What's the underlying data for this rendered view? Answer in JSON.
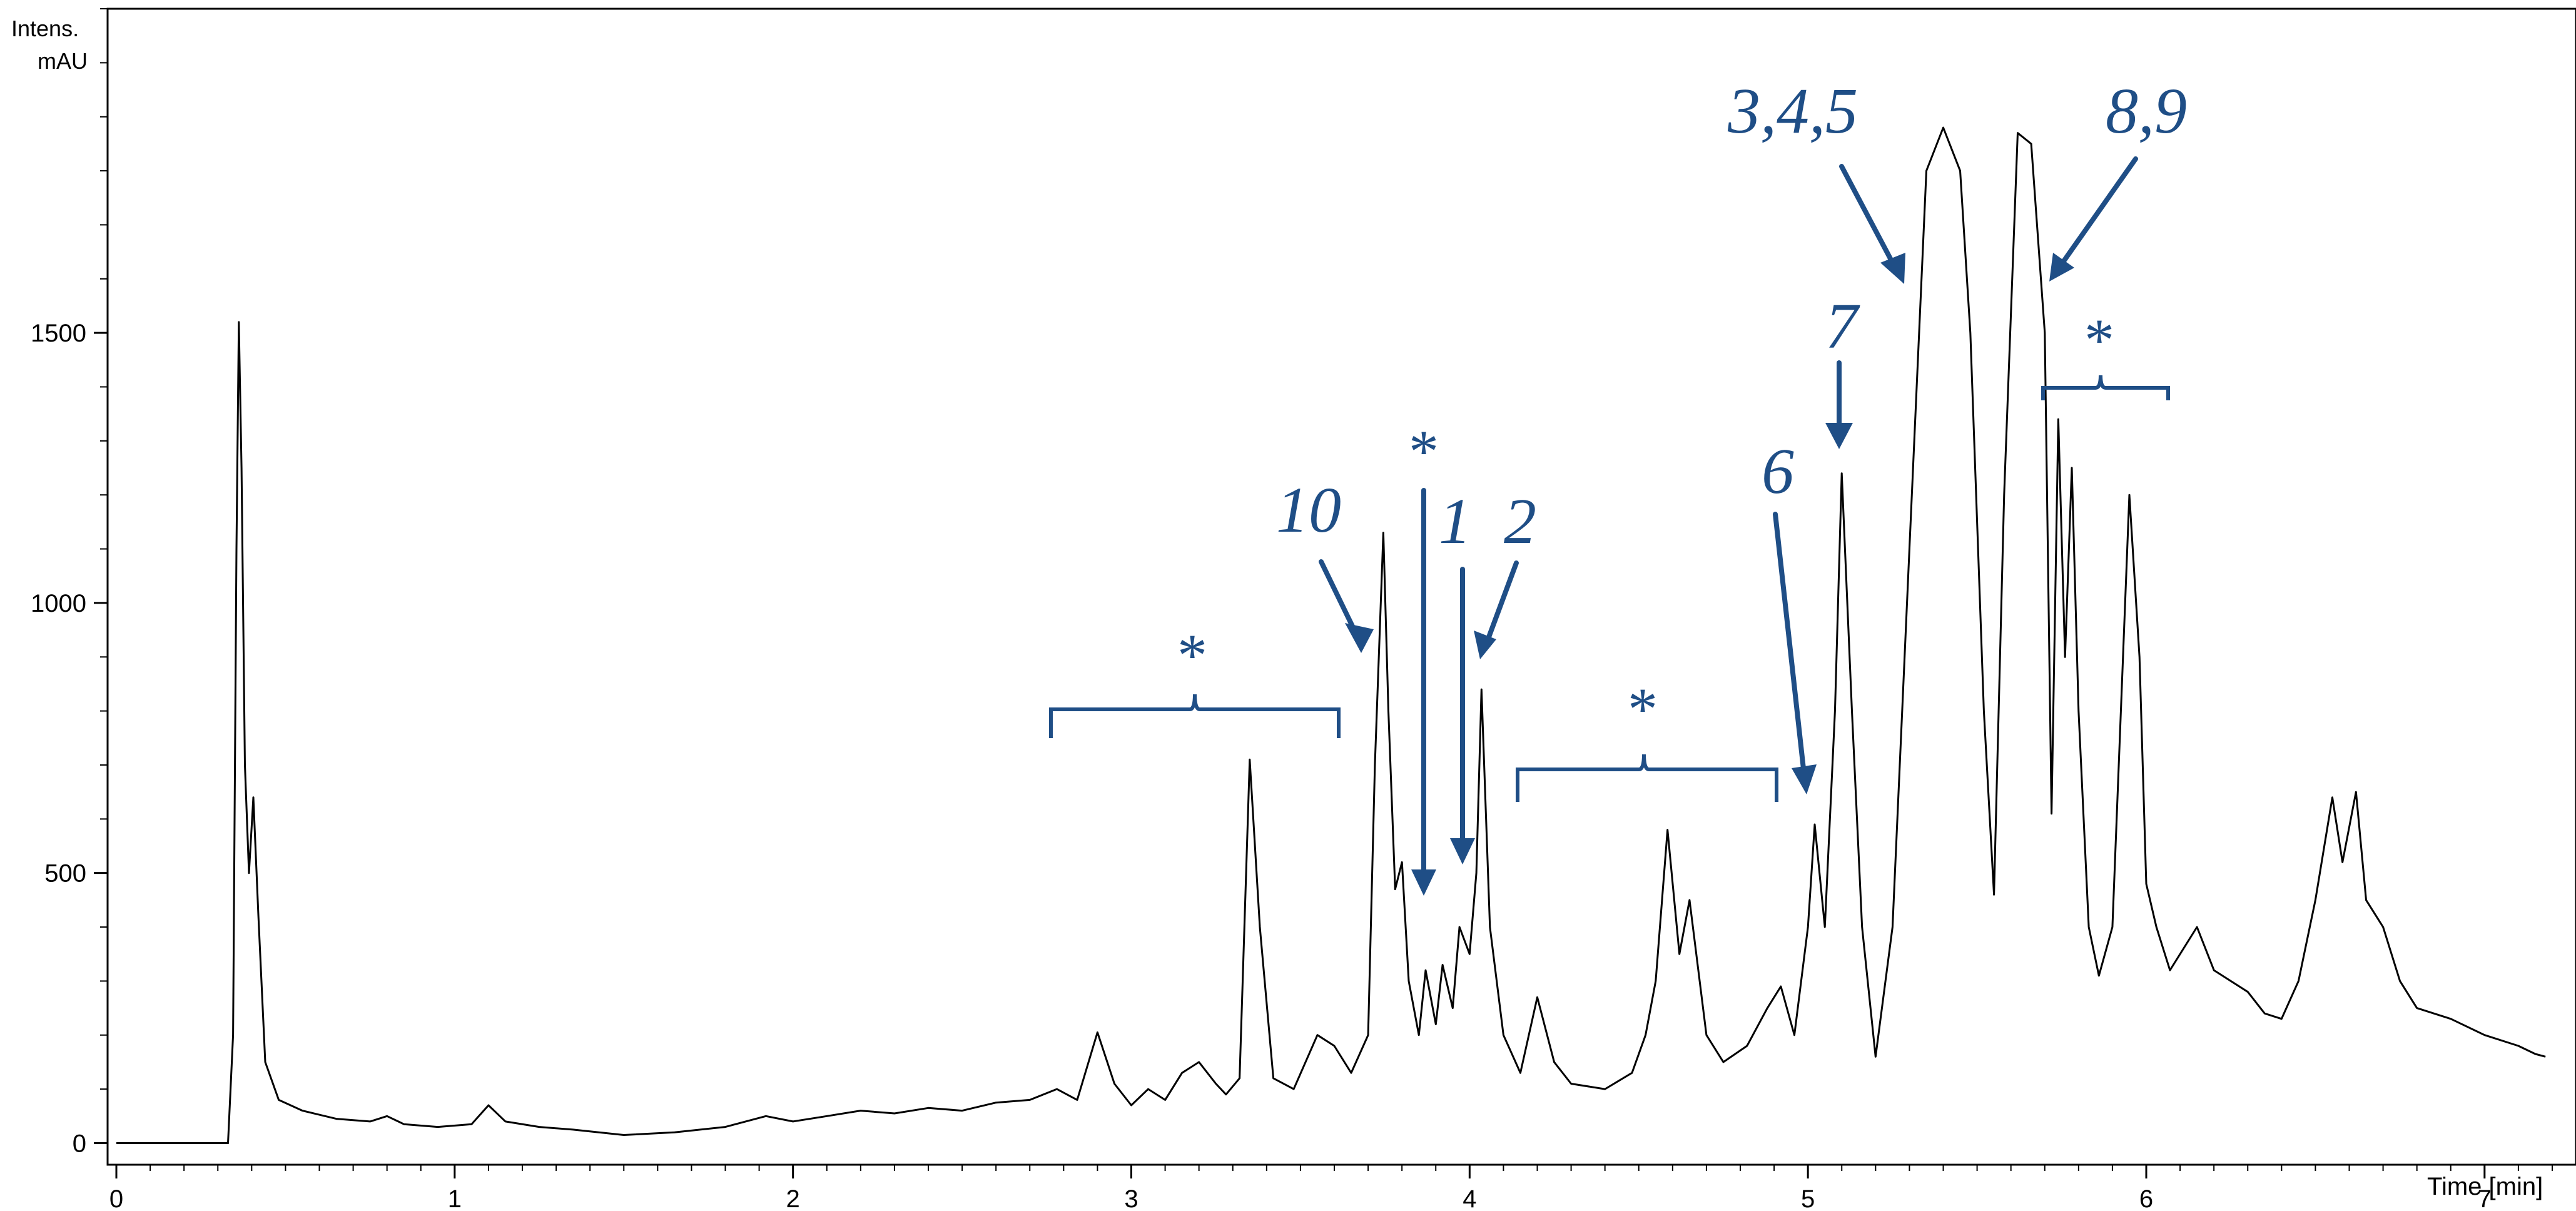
{
  "chart_data": {
    "type": "line",
    "title": "",
    "ylabel_line1": "Intens.",
    "ylabel_line2": "mAU",
    "xlabel": "Time [min]",
    "xlim": [
      0,
      7.2
    ],
    "ylim": [
      -40,
      2100
    ],
    "x_ticks": [
      "0",
      "1",
      "2",
      "3",
      "4",
      "5",
      "6",
      "7"
    ],
    "y_ticks": [
      "0",
      "500",
      "1000",
      "1500"
    ],
    "grid": false,
    "legend": "none",
    "line_color": "#000000",
    "annotation_color": "#1f4e86",
    "series": [
      {
        "points": [
          [
            0.0,
            0
          ],
          [
            0.25,
            0
          ],
          [
            0.33,
            0
          ],
          [
            0.345,
            200
          ],
          [
            0.355,
            1100
          ],
          [
            0.362,
            1520
          ],
          [
            0.37,
            1250
          ],
          [
            0.38,
            700
          ],
          [
            0.392,
            500
          ],
          [
            0.405,
            640
          ],
          [
            0.42,
            420
          ],
          [
            0.44,
            150
          ],
          [
            0.48,
            80
          ],
          [
            0.55,
            60
          ],
          [
            0.65,
            45
          ],
          [
            0.75,
            40
          ],
          [
            0.8,
            50
          ],
          [
            0.85,
            35
          ],
          [
            0.95,
            30
          ],
          [
            1.05,
            35
          ],
          [
            1.1,
            70
          ],
          [
            1.15,
            40
          ],
          [
            1.25,
            30
          ],
          [
            1.35,
            25
          ],
          [
            1.5,
            15
          ],
          [
            1.65,
            20
          ],
          [
            1.8,
            30
          ],
          [
            1.92,
            50
          ],
          [
            2.0,
            40
          ],
          [
            2.1,
            50
          ],
          [
            2.2,
            60
          ],
          [
            2.3,
            55
          ],
          [
            2.4,
            65
          ],
          [
            2.5,
            60
          ],
          [
            2.6,
            75
          ],
          [
            2.7,
            80
          ],
          [
            2.78,
            100
          ],
          [
            2.84,
            80
          ],
          [
            2.9,
            205
          ],
          [
            2.95,
            110
          ],
          [
            3.0,
            70
          ],
          [
            3.05,
            100
          ],
          [
            3.1,
            80
          ],
          [
            3.15,
            130
          ],
          [
            3.2,
            150
          ],
          [
            3.25,
            110
          ],
          [
            3.28,
            90
          ],
          [
            3.32,
            120
          ],
          [
            3.35,
            710
          ],
          [
            3.38,
            400
          ],
          [
            3.42,
            120
          ],
          [
            3.48,
            100
          ],
          [
            3.55,
            200
          ],
          [
            3.6,
            180
          ],
          [
            3.65,
            130
          ],
          [
            3.7,
            200
          ],
          [
            3.72,
            700
          ],
          [
            3.745,
            1130
          ],
          [
            3.76,
            800
          ],
          [
            3.78,
            470
          ],
          [
            3.8,
            520
          ],
          [
            3.82,
            300
          ],
          [
            3.85,
            200
          ],
          [
            3.87,
            320
          ],
          [
            3.9,
            220
          ],
          [
            3.92,
            330
          ],
          [
            3.95,
            250
          ],
          [
            3.97,
            400
          ],
          [
            4.0,
            350
          ],
          [
            4.02,
            500
          ],
          [
            4.035,
            840
          ],
          [
            4.06,
            400
          ],
          [
            4.1,
            200
          ],
          [
            4.15,
            130
          ],
          [
            4.2,
            270
          ],
          [
            4.25,
            150
          ],
          [
            4.3,
            110
          ],
          [
            4.4,
            100
          ],
          [
            4.48,
            130
          ],
          [
            4.52,
            200
          ],
          [
            4.55,
            300
          ],
          [
            4.585,
            580
          ],
          [
            4.62,
            350
          ],
          [
            4.65,
            450
          ],
          [
            4.7,
            200
          ],
          [
            4.75,
            150
          ],
          [
            4.82,
            180
          ],
          [
            4.88,
            250
          ],
          [
            4.92,
            290
          ],
          [
            4.96,
            200
          ],
          [
            5.0,
            400
          ],
          [
            5.02,
            590
          ],
          [
            5.05,
            400
          ],
          [
            5.08,
            800
          ],
          [
            5.1,
            1240
          ],
          [
            5.13,
            800
          ],
          [
            5.16,
            400
          ],
          [
            5.2,
            160
          ],
          [
            5.25,
            400
          ],
          [
            5.3,
            1100
          ],
          [
            5.35,
            1800
          ],
          [
            5.4,
            1880
          ],
          [
            5.45,
            1800
          ],
          [
            5.48,
            1500
          ],
          [
            5.52,
            800
          ],
          [
            5.55,
            460
          ],
          [
            5.58,
            1200
          ],
          [
            5.62,
            1870
          ],
          [
            5.66,
            1850
          ],
          [
            5.7,
            1500
          ],
          [
            5.72,
            610
          ],
          [
            5.74,
            1340
          ],
          [
            5.76,
            900
          ],
          [
            5.78,
            1250
          ],
          [
            5.8,
            800
          ],
          [
            5.83,
            400
          ],
          [
            5.86,
            310
          ],
          [
            5.9,
            400
          ],
          [
            5.95,
            1200
          ],
          [
            5.98,
            900
          ],
          [
            6.0,
            480
          ],
          [
            6.03,
            400
          ],
          [
            6.07,
            320
          ],
          [
            6.1,
            350
          ],
          [
            6.15,
            400
          ],
          [
            6.2,
            320
          ],
          [
            6.25,
            300
          ],
          [
            6.3,
            280
          ],
          [
            6.35,
            240
          ],
          [
            6.4,
            230
          ],
          [
            6.45,
            300
          ],
          [
            6.5,
            450
          ],
          [
            6.55,
            640
          ],
          [
            6.58,
            520
          ],
          [
            6.62,
            650
          ],
          [
            6.65,
            450
          ],
          [
            6.7,
            400
          ],
          [
            6.75,
            300
          ],
          [
            6.8,
            250
          ],
          [
            6.9,
            230
          ],
          [
            7.0,
            200
          ],
          [
            7.1,
            180
          ],
          [
            7.15,
            165
          ],
          [
            7.18,
            160
          ]
        ]
      }
    ],
    "annotations": {
      "peak_10": "10",
      "peak_1": "1",
      "peak_2": "2",
      "peak_6": "6",
      "peak_7": "7",
      "peak_345": "3,4,5",
      "peak_89": "8,9",
      "star": "*"
    }
  }
}
